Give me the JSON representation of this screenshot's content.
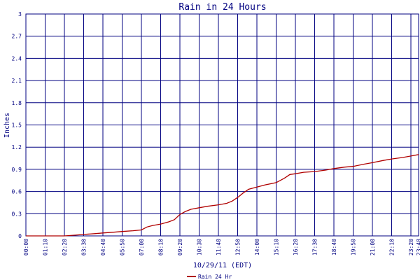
{
  "chart_data": {
    "type": "line",
    "title": "Rain in 24 Hours",
    "xlabel": "10/29/11 (EDT)",
    "ylabel": "Inches",
    "ylim": [
      0,
      3
    ],
    "grid": true,
    "legend_position": "bottom-left",
    "colors": {
      "grid": "#000080",
      "text": "#000080",
      "series": "#b00000",
      "background": "#ffffff"
    },
    "y_ticks": [
      "0",
      "0.3",
      "0.6",
      "0.9",
      "1.2",
      "1.5",
      "1.8",
      "2.1",
      "2.4",
      "2.7",
      "3"
    ],
    "x_ticks": [
      "00:00",
      "01:10",
      "02:20",
      "03:30",
      "04:40",
      "05:50",
      "07:00",
      "08:10",
      "09:20",
      "10:30",
      "11:40",
      "12:50",
      "14:00",
      "15:10",
      "16:20",
      "17:30",
      "18:40",
      "19:50",
      "21:00",
      "22:10",
      "23:20",
      "23:48"
    ],
    "series": [
      {
        "name": "Rain 24 Hr",
        "x": [
          "00:00",
          "01:10",
          "02:20",
          "03:00",
          "03:30",
          "04:10",
          "04:40",
          "05:20",
          "05:50",
          "06:30",
          "07:00",
          "07:20",
          "07:40",
          "08:10",
          "08:40",
          "09:00",
          "09:20",
          "09:40",
          "10:00",
          "10:30",
          "11:00",
          "11:40",
          "12:10",
          "12:30",
          "12:50",
          "13:10",
          "13:30",
          "14:00",
          "14:30",
          "15:10",
          "15:40",
          "16:00",
          "16:20",
          "16:50",
          "17:30",
          "18:10",
          "18:40",
          "19:20",
          "19:50",
          "20:30",
          "21:00",
          "21:40",
          "22:10",
          "22:50",
          "23:20",
          "23:48"
        ],
        "y": [
          0,
          0,
          0,
          0.01,
          0.02,
          0.03,
          0.04,
          0.05,
          0.06,
          0.07,
          0.08,
          0.12,
          0.14,
          0.16,
          0.19,
          0.22,
          0.29,
          0.33,
          0.36,
          0.38,
          0.4,
          0.42,
          0.44,
          0.47,
          0.52,
          0.58,
          0.63,
          0.66,
          0.69,
          0.72,
          0.78,
          0.83,
          0.84,
          0.86,
          0.87,
          0.89,
          0.91,
          0.93,
          0.94,
          0.97,
          0.99,
          1.02,
          1.04,
          1.06,
          1.08,
          1.1
        ]
      }
    ]
  }
}
